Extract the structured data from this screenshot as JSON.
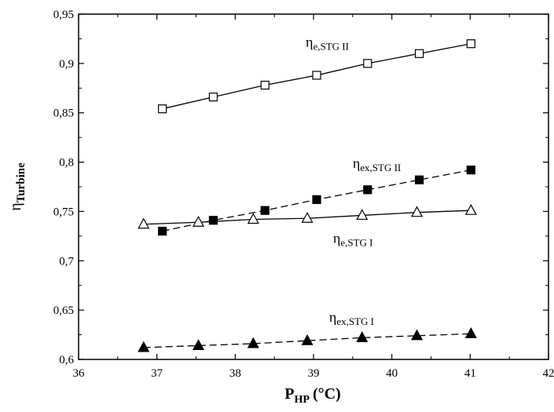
{
  "chart_data": {
    "type": "line",
    "xlabel": {
      "main": "P",
      "sub": "HP",
      "unit": "(°C)"
    },
    "ylabel": {
      "main": "η",
      "sub": "Turbine"
    },
    "xlim": [
      36,
      42
    ],
    "ylim": [
      0.6,
      0.95
    ],
    "x_ticks": [
      36,
      37,
      38,
      39,
      40,
      41,
      42
    ],
    "x_tick_labels": [
      "36",
      "37",
      "38",
      "39",
      "40",
      "41",
      "42"
    ],
    "y_ticks": [
      0.6,
      0.65,
      0.7,
      0.75,
      0.8,
      0.85,
      0.9,
      0.95
    ],
    "y_tick_labels": [
      "0,6",
      "0,65",
      "0,7",
      "0,75",
      "0,8",
      "0,85",
      "0,9",
      "0,95"
    ],
    "grid": false,
    "series": [
      {
        "label_main": "η",
        "label_sub": "e,STG II",
        "marker": "square-open",
        "line": "solid",
        "x": [
          37.07,
          37.72,
          38.38,
          39.04,
          39.69,
          40.35,
          41.01
        ],
        "y": [
          0.854,
          0.866,
          0.878,
          0.888,
          0.9,
          0.91,
          0.92
        ]
      },
      {
        "label_main": "η",
        "label_sub": "ex,STG II",
        "marker": "square-filled",
        "line": "dashed",
        "x": [
          37.07,
          37.72,
          38.38,
          39.04,
          39.69,
          40.35,
          41.01
        ],
        "y": [
          0.73,
          0.741,
          0.751,
          0.762,
          0.772,
          0.782,
          0.792
        ]
      },
      {
        "label_main": "η",
        "label_sub": "e,STG I",
        "marker": "triangle-open",
        "line": "solid",
        "x": [
          36.83,
          37.53,
          38.23,
          38.92,
          39.62,
          40.32,
          41.01
        ],
        "y": [
          0.737,
          0.739,
          0.742,
          0.743,
          0.746,
          0.749,
          0.751
        ]
      },
      {
        "label_main": "η",
        "label_sub": "ex,STG I",
        "marker": "triangle-filled",
        "line": "dashed",
        "x": [
          36.83,
          37.53,
          38.23,
          38.92,
          39.62,
          40.32,
          41.01
        ],
        "y": [
          0.612,
          0.614,
          0.616,
          0.619,
          0.622,
          0.624,
          0.626
        ]
      }
    ]
  }
}
